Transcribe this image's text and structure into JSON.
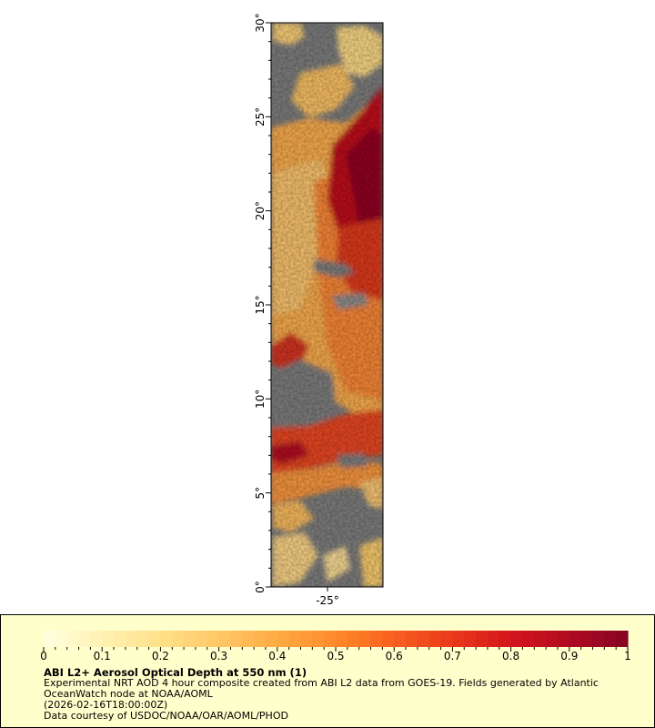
{
  "map": {
    "lat_axis": {
      "min": 0,
      "max": 30,
      "ticks": [
        "0°",
        "5°",
        "10°",
        "15°",
        "20°",
        "25°",
        "30°"
      ]
    },
    "lon_axis": {
      "ticks": [
        "-25°"
      ]
    },
    "no_data_color": "#808080"
  },
  "legend": {
    "colorbar": {
      "min": 0,
      "max": 1,
      "tick_labels": [
        "0",
        "0.1",
        "0.2",
        "0.3",
        "0.4",
        "0.5",
        "0.6",
        "0.7",
        "0.8",
        "0.9",
        "1"
      ],
      "colors": [
        "#ffffe0",
        "#fff2b3",
        "#ffe08a",
        "#ffc866",
        "#ffaa44",
        "#ff8a2a",
        "#f75f1f",
        "#e8391a",
        "#d4151c",
        "#b00b22",
        "#850424"
      ]
    },
    "title": "ABI L2+ Aerosol Optical Depth at 550 nm (1)",
    "description": "Experimental NRT AOD 4 hour composite created from ABI L2 data from GOES-19. Fields generated by Atlantic OceanWatch node at NOAA/AOML",
    "timestamp": "(2026-02-16T18:00:00Z)",
    "credit": "Data courtesy of USDOC/NOAA/OAR/AOML/PHOD"
  }
}
